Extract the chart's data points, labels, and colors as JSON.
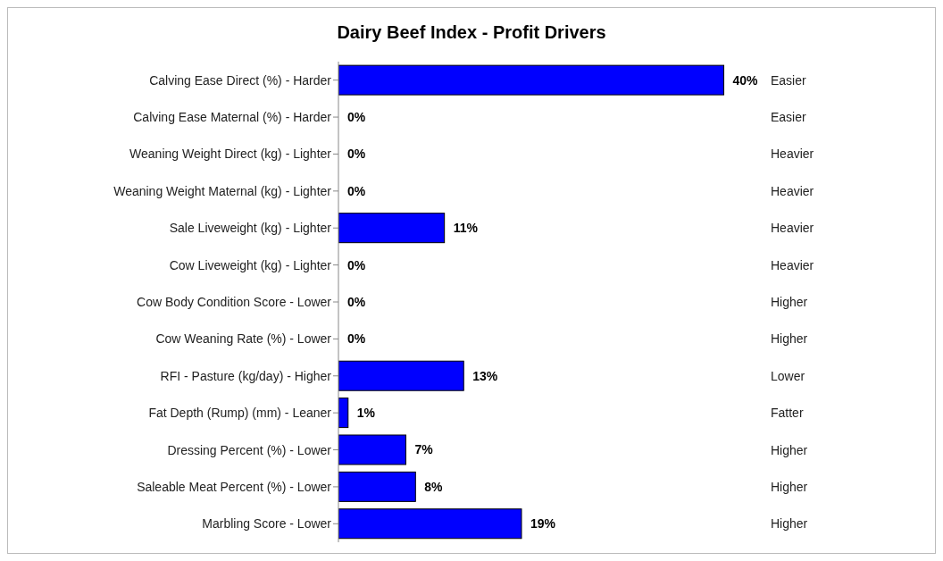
{
  "chart_data": {
    "type": "bar",
    "orientation": "horizontal",
    "title": "Dairy Beef Index - Profit Drivers",
    "categories": [
      "Calving Ease Direct (%) - Harder",
      "Calving Ease Maternal (%) - Harder",
      "Weaning Weight Direct (kg) - Lighter",
      "Weaning Weight Maternal (kg) - Lighter",
      "Sale Liveweight (kg) - Lighter",
      "Cow Liveweight (kg) - Lighter",
      "Cow Body Condition Score - Lower",
      "Cow Weaning Rate (%) - Lower",
      "RFI - Pasture (kg/day) - Higher",
      "Fat Depth (Rump) (mm) - Leaner",
      "Dressing Percent (%) - Lower",
      "Saleable Meat Percent (%) - Lower",
      "Marbling Score - Lower"
    ],
    "values": [
      40,
      0,
      0,
      0,
      11,
      0,
      0,
      0,
      13,
      1,
      7,
      8,
      19
    ],
    "value_labels": [
      "40%",
      "0%",
      "0%",
      "0%",
      "11%",
      "0%",
      "0%",
      "0%",
      "13%",
      "1%",
      "7%",
      "8%",
      "19%"
    ],
    "annotations": [
      "Easier",
      "Easier",
      "Heavier",
      "Heavier",
      "Heavier",
      "Heavier",
      "Higher",
      "Higher",
      "Lower",
      "Fatter",
      "Higher",
      "Higher",
      "Higher"
    ],
    "color": "#0000ff",
    "grid": false,
    "legend": false,
    "tick_labels": "y"
  }
}
